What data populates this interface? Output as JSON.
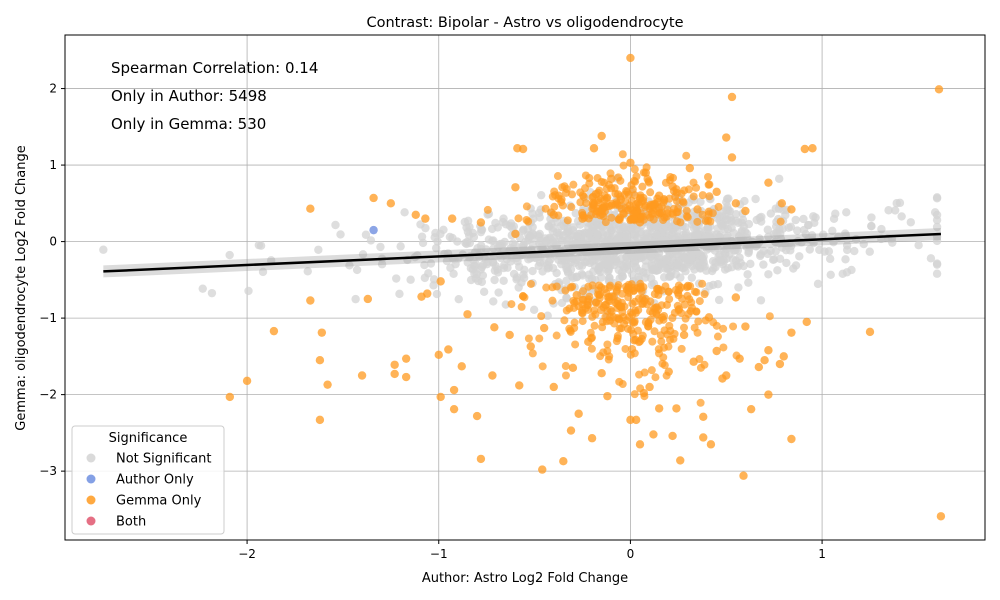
{
  "chart_data": {
    "type": "scatter",
    "title": "Contrast: Bipolar - Astro vs oligodendrocyte",
    "xlabel": "Author: Astro Log2 Fold Change",
    "ylabel": "Gemma: oligodendrocyte Log2 Fold Change",
    "xlim": [
      -2.95,
      1.85
    ],
    "ylim": [
      -3.9,
      2.7
    ],
    "x_ticks": [
      -2,
      -1,
      0,
      1
    ],
    "x_tick_labels": [
      "−2",
      "−1",
      "0",
      "1"
    ],
    "y_ticks": [
      -3,
      -2,
      -1,
      0,
      1,
      2
    ],
    "y_tick_labels": [
      "−3",
      "−2",
      "−1",
      "0",
      "1",
      "2"
    ],
    "grid": true,
    "annotations": [
      "Spearman Correlation: 0.14",
      "Only in Author: 5498",
      "Only in Gemma: 530"
    ],
    "legend": {
      "title": "Significance",
      "placement": "lower-left",
      "entries": [
        {
          "label": "Not Significant",
          "color": "#d3d3d3"
        },
        {
          "label": "Author Only",
          "color": "#6f8fe0"
        },
        {
          "label": "Gemma Only",
          "color": "#ff9a1f"
        },
        {
          "label": "Both",
          "color": "#e0566f"
        }
      ]
    },
    "regression_line": {
      "x": [
        -2.75,
        1.62
      ],
      "y": [
        -0.39,
        0.1
      ],
      "color": "#000000"
    },
    "series": [
      {
        "name": "Gemma Only",
        "color": "#ff9a1f",
        "points": [
          [
            0.0,
            2.4
          ],
          [
            1.61,
            1.99
          ],
          [
            0.53,
            1.89
          ],
          [
            -0.15,
            1.38
          ],
          [
            0.5,
            1.36
          ],
          [
            -0.59,
            1.22
          ],
          [
            0.91,
            1.21
          ],
          [
            0.95,
            1.22
          ],
          [
            -0.56,
            1.21
          ],
          [
            -0.19,
            1.22
          ],
          [
            0.53,
            1.1
          ],
          [
            0.0,
            1.03
          ],
          [
            -1.67,
            0.43
          ],
          [
            -0.36,
            0.55
          ],
          [
            -1.12,
            0.35
          ],
          [
            -0.93,
            0.3
          ],
          [
            0.72,
            0.77
          ],
          [
            0.79,
            0.5
          ],
          [
            0.84,
            0.42
          ],
          [
            -1.34,
            0.57
          ],
          [
            -1.25,
            0.5
          ],
          [
            -1.07,
            0.3
          ],
          [
            -0.78,
            0.25
          ],
          [
            -0.6,
            0.71
          ],
          [
            0.31,
            0.96
          ],
          [
            0.45,
            0.65
          ],
          [
            0.6,
            0.4
          ],
          [
            -1.09,
            -0.72
          ],
          [
            -1.06,
            -0.68
          ],
          [
            -0.99,
            -0.52
          ],
          [
            -1.67,
            -0.77
          ],
          [
            -1.37,
            -0.75
          ],
          [
            -1.62,
            -1.55
          ],
          [
            -1.61,
            -1.19
          ],
          [
            -1.86,
            -1.17
          ],
          [
            -2.0,
            -1.82
          ],
          [
            -2.09,
            -2.03
          ],
          [
            -1.62,
            -2.33
          ],
          [
            -1.58,
            -1.87
          ],
          [
            -1.23,
            -1.61
          ],
          [
            -1.17,
            -1.53
          ],
          [
            -1.23,
            -1.73
          ],
          [
            -1.17,
            -1.77
          ],
          [
            -1.4,
            -1.75
          ],
          [
            -0.99,
            -2.03
          ],
          [
            -0.92,
            -1.94
          ],
          [
            -0.92,
            -2.19
          ],
          [
            -0.8,
            -2.28
          ],
          [
            -0.78,
            -2.84
          ],
          [
            -0.46,
            -2.98
          ],
          [
            -0.31,
            -2.47
          ],
          [
            -0.35,
            -2.87
          ],
          [
            -0.27,
            -2.25
          ],
          [
            -0.2,
            -2.57
          ],
          [
            0.0,
            -2.33
          ],
          [
            0.03,
            -2.33
          ],
          [
            0.05,
            -2.65
          ],
          [
            0.22,
            -2.54
          ],
          [
            0.26,
            -2.86
          ],
          [
            0.38,
            -2.56
          ],
          [
            0.42,
            -2.65
          ],
          [
            0.59,
            -3.06
          ],
          [
            0.84,
            -2.58
          ],
          [
            1.62,
            -3.59
          ],
          [
            1.25,
            -1.18
          ],
          [
            0.92,
            -1.05
          ],
          [
            0.84,
            -1.19
          ],
          [
            0.8,
            -1.5
          ],
          [
            0.78,
            -1.6
          ],
          [
            0.72,
            -1.42
          ],
          [
            0.7,
            -1.55
          ],
          [
            0.67,
            -1.64
          ],
          [
            0.63,
            -2.19
          ],
          [
            0.72,
            -2.0
          ],
          [
            0.57,
            -1.53
          ],
          [
            0.5,
            -1.75
          ],
          [
            0.48,
            -1.79
          ],
          [
            0.15,
            -2.18
          ],
          [
            0.12,
            -2.52
          ],
          [
            0.24,
            -2.18
          ],
          [
            0.38,
            -2.29
          ],
          [
            0.33,
            -1.57
          ],
          [
            0.1,
            -1.9
          ],
          [
            0.07,
            -1.98
          ],
          [
            -0.12,
            -2.02
          ],
          [
            -0.58,
            -1.88
          ],
          [
            -0.72,
            -1.75
          ],
          [
            -0.88,
            -1.63
          ],
          [
            -0.95,
            -1.41
          ],
          [
            -1.0,
            -1.48
          ],
          [
            -0.3,
            -1.65
          ],
          [
            -0.4,
            -1.9
          ],
          [
            -0.15,
            -1.72
          ],
          [
            0.2,
            -1.7
          ],
          [
            0.45,
            -1.43
          ],
          [
            -0.52,
            -1.37
          ],
          [
            -0.22,
            -1.31
          ],
          [
            0.02,
            -1.29
          ],
          [
            0.28,
            -1.22
          ],
          [
            -0.71,
            -1.12
          ],
          [
            -0.63,
            -1.22
          ],
          [
            -0.45,
            -1.13
          ],
          [
            0.6,
            -1.11
          ],
          [
            0.41,
            -0.99
          ],
          [
            -0.85,
            -0.95
          ],
          [
            -0.05,
            -0.85
          ],
          [
            0.14,
            -0.62
          ],
          [
            -0.28,
            -0.7
          ],
          [
            0.3,
            -0.58
          ],
          [
            0.55,
            -0.73
          ],
          [
            -0.1,
            0.82
          ],
          [
            0.08,
            0.9
          ],
          [
            0.22,
            0.72
          ],
          [
            -0.4,
            0.35
          ],
          [
            0.35,
            0.42
          ],
          [
            -0.25,
            0.3
          ],
          [
            -0.05,
            0.55
          ],
          [
            0.15,
            0.6
          ],
          [
            -0.18,
            0.62
          ],
          [
            0.05,
            0.25
          ],
          [
            -0.6,
            0.1
          ],
          [
            0.55,
            0.5
          ]
        ]
      },
      {
        "name": "Author Only",
        "color": "#6f8fe0",
        "points": [
          [
            -1.34,
            0.15
          ]
        ]
      }
    ]
  }
}
